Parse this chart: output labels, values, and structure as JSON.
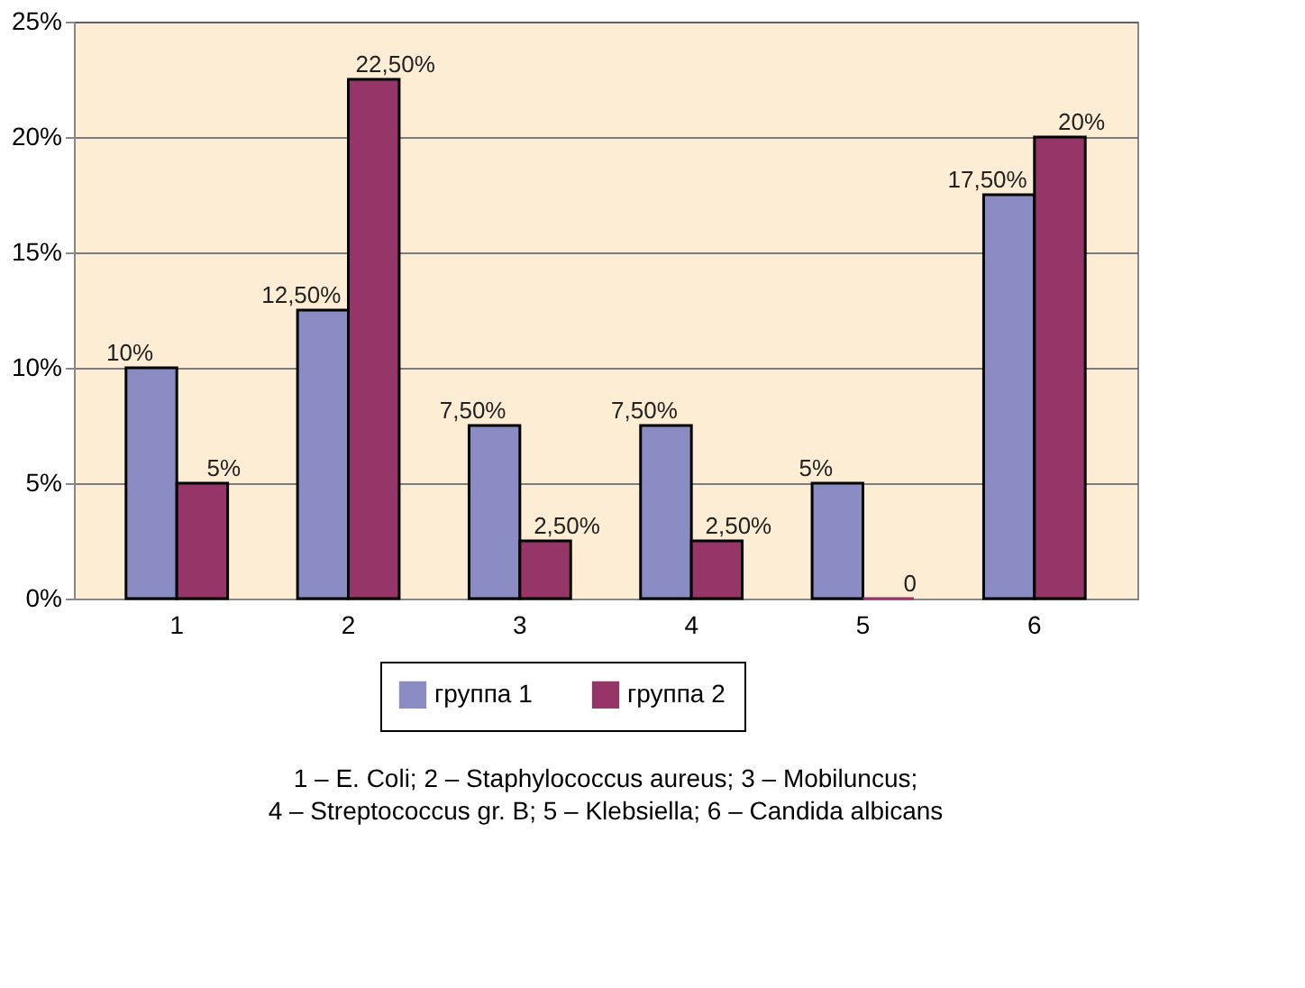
{
  "chart_data": {
    "type": "bar",
    "categories": [
      "1",
      "2",
      "3",
      "4",
      "5",
      "6"
    ],
    "series": [
      {
        "name": "группа 1",
        "color": "#8b8cc4",
        "values": [
          10,
          12.5,
          7.5,
          7.5,
          5,
          17.5
        ],
        "value_labels": [
          "10%",
          "12,50%",
          "7,50%",
          "7,50%",
          "5%",
          "17,50%"
        ]
      },
      {
        "name": "группа 2",
        "color": "#963668",
        "values": [
          5,
          22.5,
          2.5,
          2.5,
          0,
          20
        ],
        "value_labels": [
          "5%",
          "22,50%",
          "2,50%",
          "2,50%",
          "0",
          "20%"
        ]
      }
    ],
    "ylim": [
      0,
      25
    ],
    "yticks": [
      {
        "value": 0,
        "label": "0%"
      },
      {
        "value": 5,
        "label": "5%"
      },
      {
        "value": 10,
        "label": "10%"
      },
      {
        "value": 15,
        "label": "15%"
      },
      {
        "value": 20,
        "label": "20%"
      },
      {
        "value": 25,
        "label": "25%"
      }
    ],
    "grid": "y",
    "legend": "bottom",
    "annotations": [
      "1 – E. Coli;    2 – Staphylococcus aureus;    3 – Mobiluncus;",
      "4 – Streptococcus gr. B;    5 – Klebsiella;   6 – Candida albicans"
    ]
  }
}
